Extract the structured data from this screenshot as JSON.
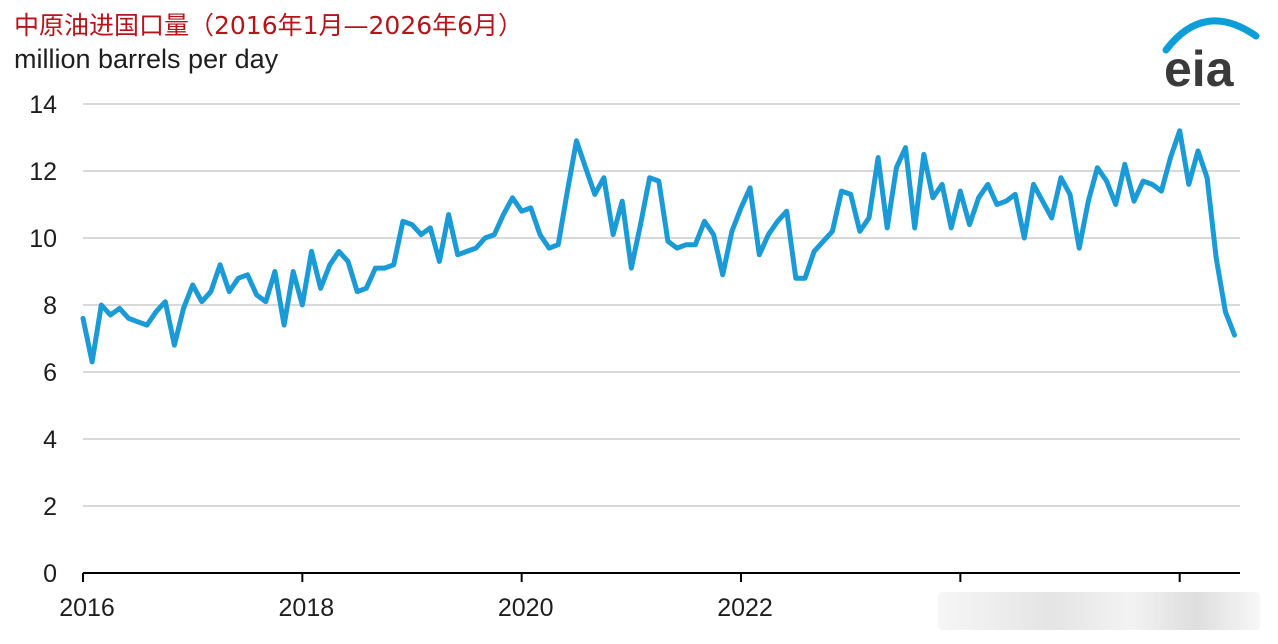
{
  "header": {
    "title": "中原油进国口量（2016年1月—2026年6月）",
    "unit": "million barrels per day",
    "logo_text": "eia"
  },
  "colors": {
    "line": "#1a9ad6",
    "title": "#b5141b",
    "grid": "#d9d9d9",
    "axis": "#000000",
    "logo_arc": "#0b9ed9",
    "logo_text": "#3a3a3a"
  },
  "chart_data": {
    "type": "line",
    "title": "中原油进国口量（2016年1月—2026年6月）",
    "ylabel": "million barrels per day",
    "xlabel": "",
    "ylim": [
      0,
      14
    ],
    "yticks": [
      0,
      2,
      4,
      6,
      8,
      10,
      12,
      14
    ],
    "xlim": [
      2016,
      2026.55
    ],
    "xticks": [
      2016,
      2018,
      2020,
      2022,
      2024,
      2026
    ],
    "xtick_labels": [
      "2016",
      "2018",
      "2020",
      "2022",
      "",
      ""
    ],
    "grid": true,
    "series": [
      {
        "start": "2016-01",
        "frequency": "monthly",
        "values": [
          7.6,
          6.3,
          8.0,
          7.7,
          7.9,
          7.6,
          7.5,
          7.4,
          7.8,
          8.1,
          6.8,
          7.9,
          8.6,
          8.1,
          8.4,
          9.2,
          8.4,
          8.8,
          8.9,
          8.3,
          8.1,
          9.0,
          7.4,
          9.0,
          8.0,
          9.6,
          8.5,
          9.2,
          9.6,
          9.3,
          8.4,
          8.5,
          9.1,
          9.1,
          9.2,
          10.5,
          10.4,
          10.1,
          10.3,
          9.3,
          10.7,
          9.5,
          9.6,
          9.7,
          10.0,
          10.1,
          10.7,
          11.2,
          10.8,
          10.9,
          10.1,
          9.7,
          9.8,
          11.4,
          12.9,
          12.1,
          11.3,
          11.8,
          10.1,
          11.1,
          9.1,
          10.4,
          11.8,
          11.7,
          9.9,
          9.7,
          9.8,
          9.8,
          10.5,
          10.1,
          8.9,
          10.2,
          10.9,
          11.5,
          9.5,
          10.1,
          10.5,
          10.8,
          8.8,
          8.8,
          9.6,
          9.9,
          10.2,
          11.4,
          11.3,
          10.2,
          10.6,
          12.4,
          10.3,
          12.1,
          12.7,
          10.3,
          12.5,
          11.2,
          11.6,
          10.3,
          11.4,
          10.4,
          11.2,
          11.6,
          11.0,
          11.1,
          11.3,
          10.0,
          11.6,
          11.1,
          10.6,
          11.8,
          11.3,
          9.7,
          11.1,
          12.1,
          11.7,
          11.0,
          12.2,
          11.1,
          11.7,
          11.6,
          11.4,
          12.4,
          13.2,
          11.6,
          12.6,
          11.8,
          9.4,
          7.8,
          7.1
        ]
      }
    ]
  }
}
